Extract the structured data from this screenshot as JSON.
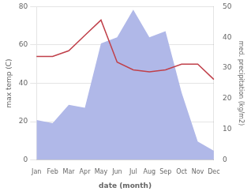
{
  "chart_data": {
    "type": "line",
    "xlabel": "date (month)",
    "ylabel": "max temp (C)",
    "y2label": "med. precipitation (kg/m2)",
    "categories": [
      "Jan",
      "Feb",
      "Mar",
      "Apr",
      "May",
      "Jun",
      "Jul",
      "Aug",
      "Sep",
      "Oct",
      "Nov",
      "Dec"
    ],
    "series": [
      {
        "type": "area",
        "axis": "y2",
        "color": "#b0b8e8",
        "values": [
          13,
          12,
          18,
          17,
          38,
          40,
          49,
          40,
          42,
          22,
          6,
          3
        ]
      },
      {
        "type": "line",
        "color": "#c0404a",
        "values": [
          54,
          54,
          57,
          65,
          73,
          51,
          47,
          46,
          47,
          50,
          50,
          42
        ]
      }
    ],
    "ylim": [
      0,
      80
    ],
    "yticks": [
      0,
      20,
      40,
      60,
      80
    ],
    "y2lim": [
      0,
      50
    ],
    "y2ticks": [
      0,
      10,
      20,
      30,
      40,
      50
    ],
    "grid": true
  }
}
